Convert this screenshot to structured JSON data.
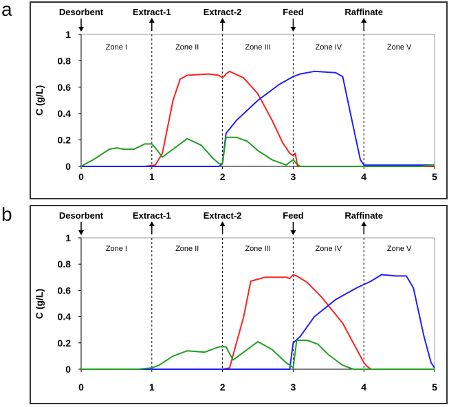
{
  "panels": [
    {
      "label": "a",
      "ylabel": "C (g/L)",
      "yticks": [
        "0",
        "0.2",
        "0.4",
        "0.6",
        "0.8",
        "1"
      ],
      "xticks": [
        "0",
        "1",
        "2",
        "3",
        "4",
        "5"
      ],
      "ports": [
        {
          "name": "Desorbent",
          "x": 0,
          "direction": "down"
        },
        {
          "name": "Extract-1",
          "x": 1,
          "direction": "up"
        },
        {
          "name": "Extract-2",
          "x": 2,
          "direction": "up"
        },
        {
          "name": "Feed",
          "x": 3,
          "direction": "down"
        },
        {
          "name": "Raffinate",
          "x": 4,
          "direction": "up"
        }
      ],
      "zones": [
        {
          "name": "Zone I",
          "x": 0.5
        },
        {
          "name": "Zone II",
          "x": 1.5
        },
        {
          "name": "Zone III",
          "x": 2.5
        },
        {
          "name": "Zone IV",
          "x": 3.5
        },
        {
          "name": "Zone V",
          "x": 4.5
        }
      ]
    },
    {
      "label": "b",
      "ylabel": "C (g/L)",
      "yticks": [
        "0",
        "0.2",
        "0.4",
        "0.6",
        "0.8",
        "1"
      ],
      "xticks": [
        "0",
        "1",
        "2",
        "3",
        "4",
        "5"
      ],
      "ports": [
        {
          "name": "Desorbent",
          "x": 0,
          "direction": "down"
        },
        {
          "name": "Extract-1",
          "x": 1,
          "direction": "up"
        },
        {
          "name": "Extract-2",
          "x": 2,
          "direction": "up"
        },
        {
          "name": "Feed",
          "x": 3,
          "direction": "down"
        },
        {
          "name": "Raffinate",
          "x": 4,
          "direction": "up"
        }
      ],
      "zones": [
        {
          "name": "Zone I",
          "x": 0.5
        },
        {
          "name": "Zone II",
          "x": 1.5
        },
        {
          "name": "Zone III",
          "x": 2.5
        },
        {
          "name": "Zone IV",
          "x": 3.5
        },
        {
          "name": "Zone V",
          "x": 4.5
        }
      ]
    }
  ],
  "chart_data": [
    {
      "type": "line",
      "panel": "a",
      "ylabel": "C (g/L)",
      "xlim": [
        0,
        5
      ],
      "ylim": [
        0,
        1
      ],
      "grid": false,
      "series": [
        {
          "color": "#ff2020",
          "x": [
            0,
            0.9,
            1.05,
            1.15,
            1.3,
            1.4,
            1.5,
            1.8,
            1.95,
            2.0,
            2.05,
            2.1,
            2.3,
            2.5,
            2.7,
            2.85,
            2.95,
            3.0,
            3.03,
            3.06,
            5.0
          ],
          "y": [
            0,
            0,
            0.01,
            0.1,
            0.5,
            0.66,
            0.69,
            0.7,
            0.69,
            0.67,
            0.7,
            0.72,
            0.67,
            0.55,
            0.35,
            0.18,
            0.1,
            0.08,
            0.1,
            0.0,
            0.0
          ]
        },
        {
          "color": "#2020ff",
          "x": [
            0,
            1.95,
            2.0,
            2.05,
            2.2,
            2.5,
            2.8,
            3.0,
            3.1,
            3.3,
            3.6,
            3.7,
            3.85,
            3.95,
            4.0,
            5.0
          ],
          "y": [
            0,
            0,
            0.02,
            0.25,
            0.35,
            0.5,
            0.62,
            0.68,
            0.7,
            0.72,
            0.71,
            0.68,
            0.3,
            0.05,
            0.01,
            0.01
          ]
        },
        {
          "color": "#20a020",
          "x": [
            0,
            0.2,
            0.4,
            0.5,
            0.6,
            0.75,
            0.9,
            1.0,
            1.05,
            1.15,
            1.3,
            1.5,
            1.7,
            1.85,
            1.95,
            2.0,
            2.05,
            2.2,
            2.35,
            2.5,
            2.7,
            2.9,
            3.0,
            3.05,
            3.1,
            4.8,
            5.0
          ],
          "y": [
            0,
            0.06,
            0.13,
            0.14,
            0.13,
            0.13,
            0.17,
            0.17,
            0.14,
            0.07,
            0.13,
            0.21,
            0.16,
            0.07,
            0.02,
            0.02,
            0.22,
            0.22,
            0.19,
            0.12,
            0.05,
            0.01,
            0.05,
            0.02,
            0.0,
            0.0,
            0.01
          ]
        }
      ]
    },
    {
      "type": "line",
      "panel": "b",
      "ylabel": "C (g/L)",
      "xlim": [
        0,
        5
      ],
      "ylim": [
        0,
        1
      ],
      "grid": false,
      "series": [
        {
          "color": "#ff2020",
          "x": [
            0,
            2.0,
            2.1,
            2.3,
            2.4,
            2.6,
            2.9,
            2.95,
            3.0,
            3.05,
            3.2,
            3.4,
            3.7,
            3.85,
            4.0,
            4.05,
            4.1,
            5.0
          ],
          "y": [
            0,
            0,
            0.01,
            0.4,
            0.67,
            0.7,
            0.7,
            0.69,
            0.72,
            0.71,
            0.66,
            0.55,
            0.35,
            0.2,
            0.05,
            0.02,
            0.0,
            0.0
          ]
        },
        {
          "color": "#2020ff",
          "x": [
            0,
            2.95,
            3.0,
            3.1,
            3.3,
            3.6,
            3.9,
            4.1,
            4.25,
            4.45,
            4.6,
            4.7,
            4.85,
            4.95,
            5.0
          ],
          "y": [
            0,
            0,
            0.2,
            0.25,
            0.4,
            0.53,
            0.62,
            0.67,
            0.72,
            0.71,
            0.71,
            0.62,
            0.25,
            0.05,
            0.01
          ]
        },
        {
          "color": "#20a020",
          "x": [
            0,
            0.8,
            1.0,
            1.1,
            1.3,
            1.5,
            1.75,
            1.95,
            2.05,
            2.15,
            2.3,
            2.5,
            2.7,
            2.9,
            2.98,
            3.0,
            3.05,
            3.2,
            3.35,
            3.5,
            3.7,
            3.85,
            5.0
          ],
          "y": [
            0,
            0,
            0.01,
            0.03,
            0.1,
            0.14,
            0.13,
            0.17,
            0.17,
            0.07,
            0.13,
            0.21,
            0.15,
            0.05,
            0.02,
            0.01,
            0.22,
            0.22,
            0.19,
            0.11,
            0.03,
            0.0,
            0.0
          ]
        }
      ]
    }
  ]
}
